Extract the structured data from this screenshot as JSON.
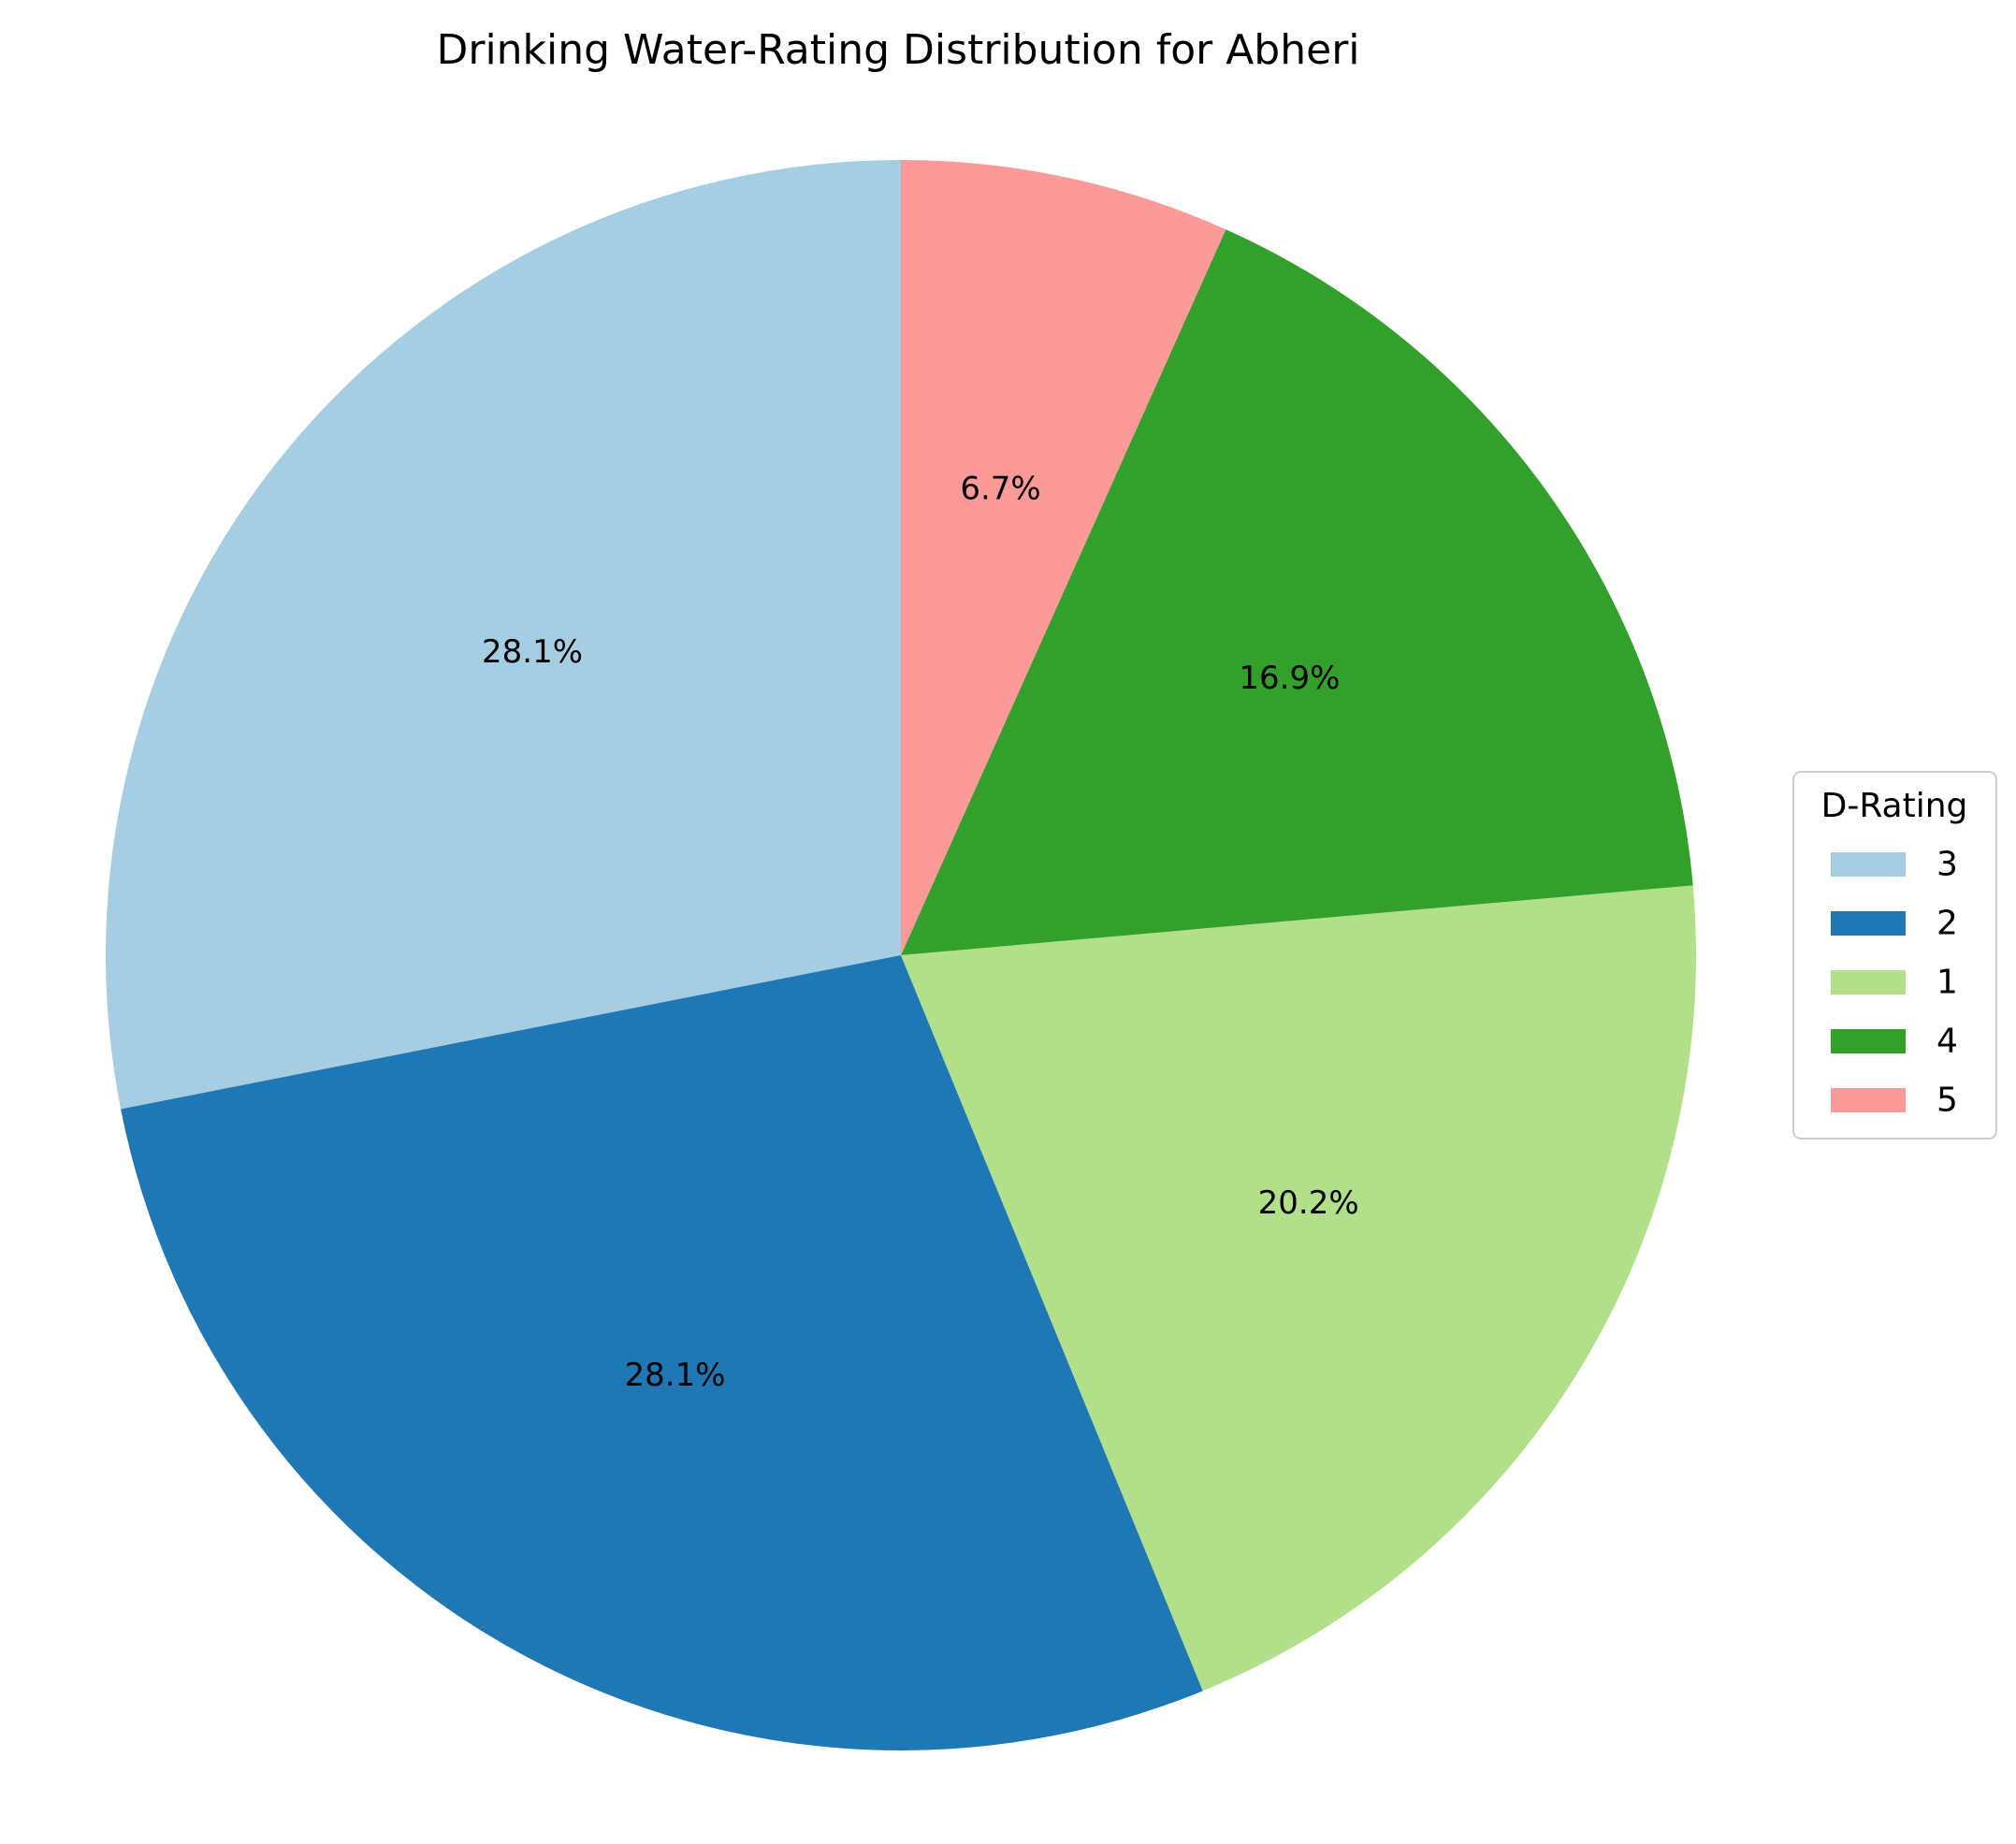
{
  "chart_data": {
    "type": "pie",
    "title": "Drinking Water-Rating Distribution for Abheri",
    "legend_title": "D-Rating",
    "legend_position": "right",
    "start_angle": "top, counter-clockwise",
    "slices": [
      {
        "label": "3",
        "value": 28.1,
        "pct_text": "28.1%",
        "color": "#a6cee3"
      },
      {
        "label": "2",
        "value": 28.1,
        "pct_text": "28.1%",
        "color": "#1f78b4"
      },
      {
        "label": "1",
        "value": 20.2,
        "pct_text": "20.2%",
        "color": "#b2df8a"
      },
      {
        "label": "4",
        "value": 16.9,
        "pct_text": "16.9%",
        "color": "#33a02c"
      },
      {
        "label": "5",
        "value": 6.7,
        "pct_text": "6.7%",
        "color": "#fb9a99"
      }
    ]
  }
}
